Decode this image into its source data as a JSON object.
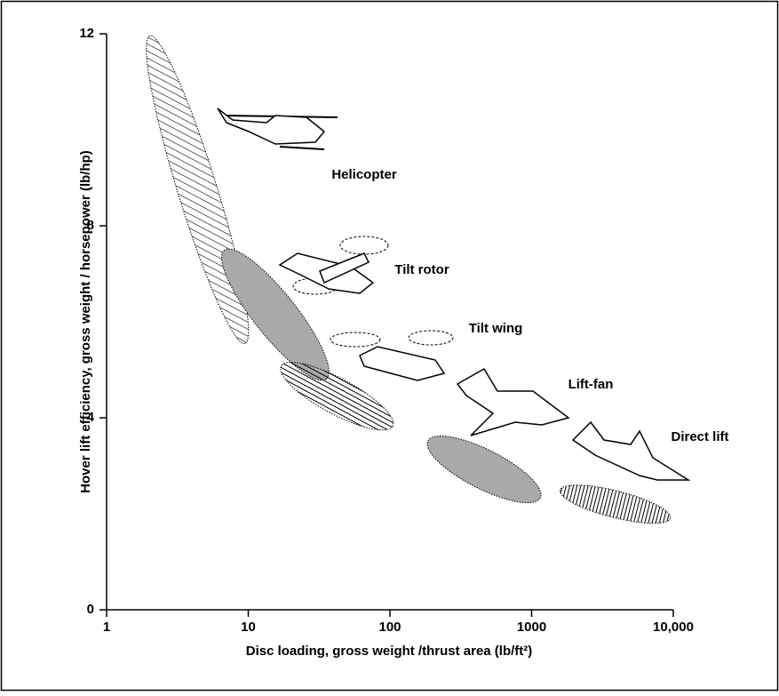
{
  "chart_data": {
    "type": "region",
    "xlabel": "Disc loading, gross weight /thrust area (lb/ft²)",
    "ylabel": "Hover lift efficiency, gross weight / horsepower (lb/hp)",
    "xscale": "log",
    "xlim": [
      1,
      10000
    ],
    "xticks": [
      1,
      10,
      100,
      1000,
      {
        "value": 10000,
        "label": "10,000"
      }
    ],
    "ylim": [
      0,
      12
    ],
    "yticks": [
      0,
      4,
      8,
      12
    ],
    "series": [
      {
        "name": "Helicopter",
        "fill": "hatch-diagonal",
        "x": [
          2.2,
          8.7
        ],
        "values": [
          11.6,
          5.9
        ]
      },
      {
        "name": "Tilt rotor",
        "fill": "gray",
        "x": [
          8.1,
          29.7
        ],
        "values": [
          7.2,
          5.1
        ]
      },
      {
        "name": "Tilt wing",
        "fill": "hatch-horizontal",
        "x": [
          22,
          81
        ],
        "values": [
          4.9,
          4.0
        ]
      },
      {
        "name": "Lift-fan",
        "fill": "gray",
        "x": [
          240,
          890
        ],
        "values": [
          3.35,
          2.5
        ]
      },
      {
        "name": "Direct lift",
        "fill": "hatch-vertical",
        "x": [
          2100,
          7200
        ],
        "values": [
          2.4,
          2.0
        ]
      }
    ]
  }
}
